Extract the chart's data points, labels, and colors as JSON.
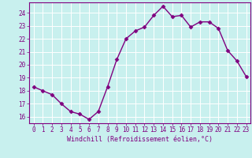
{
  "x": [
    0,
    1,
    2,
    3,
    4,
    5,
    6,
    7,
    8,
    9,
    10,
    11,
    12,
    13,
    14,
    15,
    16,
    17,
    18,
    19,
    20,
    21,
    22,
    23
  ],
  "y": [
    18.3,
    18.0,
    17.7,
    17.0,
    16.4,
    16.2,
    15.8,
    16.4,
    18.3,
    20.4,
    22.0,
    22.6,
    22.9,
    23.8,
    24.5,
    23.7,
    23.8,
    22.9,
    23.3,
    23.3,
    22.8,
    21.1,
    20.3,
    19.1
  ],
  "line_color": "#800080",
  "marker": "D",
  "marker_size": 2.5,
  "bg_color": "#c8f0ee",
  "grid_color": "#ffffff",
  "xlabel": "Windchill (Refroidissement éolien,°C)",
  "xlim": [
    -0.5,
    23.5
  ],
  "ylim": [
    15.5,
    24.8
  ],
  "yticks": [
    16,
    17,
    18,
    19,
    20,
    21,
    22,
    23,
    24
  ],
  "xticks": [
    0,
    1,
    2,
    3,
    4,
    5,
    6,
    7,
    8,
    9,
    10,
    11,
    12,
    13,
    14,
    15,
    16,
    17,
    18,
    19,
    20,
    21,
    22,
    23
  ],
  "tick_color": "#800080",
  "label_color": "#800080",
  "spine_color": "#800080",
  "tick_fontsize": 5.5,
  "xlabel_fontsize": 6.0,
  "linewidth": 1.0
}
